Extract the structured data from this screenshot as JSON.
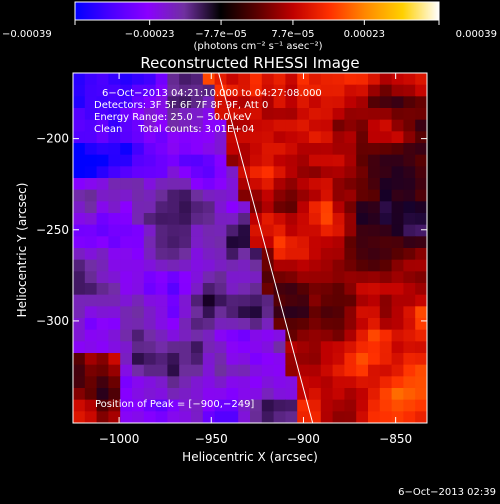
{
  "chart_data": {
    "type": "heatmap",
    "title": "Reconstructed RHESSI Image",
    "xlabel": "Heliocentric X (arcsec)",
    "ylabel": "Heliocentric Y (arcsec)",
    "xlim": [
      -1025,
      -833
    ],
    "ylim": [
      -356,
      -164
    ],
    "x_ticks": [
      -1000,
      -950,
      -900,
      -850
    ],
    "x_tick_labels": [
      "−1000",
      "−950",
      "−900",
      "−850"
    ],
    "y_ticks": [
      -200,
      -250,
      -300
    ],
    "y_tick_labels": [
      "−200",
      "−250",
      "−300"
    ],
    "colorbar": {
      "min": -0.00039,
      "max": 0.00039,
      "ticks": [
        -0.00039,
        -0.00023,
        -7.7e-05,
        7.7e-05,
        0.00023,
        0.00039
      ],
      "tick_labels": [
        "−0.00039",
        "−0.00023",
        "−7.7e−05",
        "7.7e−05",
        "0.00023",
        "0.00039"
      ],
      "unit_label": "(photons cm⁻² s⁻¹ asec⁻²)",
      "colors": [
        "#0000ff",
        "#4b00ff",
        "#8a00ff",
        "#7030a0",
        "#000000",
        "#5a0000",
        "#c00000",
        "#ff3000",
        "#ff8a00",
        "#ffd000",
        "#ffffff"
      ]
    },
    "annotations": [
      "6−Oct−2013 04:21:10.000 to 04:27:08.000",
      "Detectors: 3F 5F 6F 7F 8F 9F, Att 0",
      "Energy Range: 25.0 − 50.0 keV",
      "Clean     Total counts: 3.01E+04"
    ],
    "peak_label": "Position of Peak = [−900,−249]",
    "peak": [
      -900,
      -249
    ],
    "limb_line": [
      [
        -946,
        -164
      ],
      [
        -895,
        -356
      ]
    ],
    "grid": false,
    "grid_shape": [
      30,
      30
    ],
    "grid_seed": 7
  },
  "timestamp": "6−Oct−2013 02:39"
}
